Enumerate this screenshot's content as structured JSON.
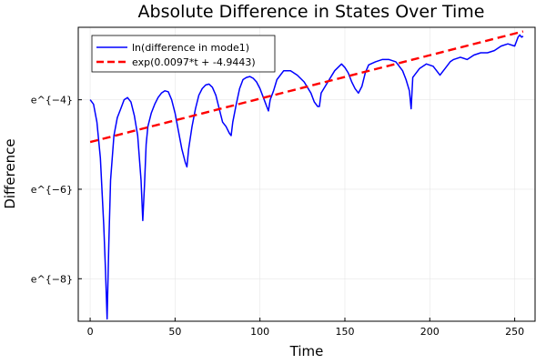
{
  "chart_data": {
    "type": "line",
    "title": "Absolute Difference in States Over Time",
    "xlabel": "Time",
    "ylabel": "Difference",
    "xlim": [
      -7,
      262
    ],
    "ylim": [
      -8.95,
      -2.38
    ],
    "x_ticks": [
      0,
      50,
      100,
      150,
      200,
      250
    ],
    "x_tick_labels": [
      "0",
      "50",
      "100",
      "150",
      "200",
      "250"
    ],
    "y_ticks": [
      -8,
      -6,
      -4
    ],
    "y_tick_labels": [
      "e^{−8}",
      "e^{−6}",
      "e^{−4}"
    ],
    "grid": true,
    "legend_position": "top-left",
    "series": [
      {
        "name": "ln(difference in mode1)",
        "color": "#0000ff",
        "style": "solid",
        "x": [
          0,
          2,
          4,
          6,
          8,
          9,
          10,
          11,
          12,
          14,
          16,
          18,
          20,
          22,
          24,
          26,
          28,
          30,
          31,
          32,
          33,
          34,
          36,
          38,
          40,
          42,
          44,
          46,
          48,
          50,
          52,
          54,
          56,
          57,
          58,
          60,
          62,
          64,
          66,
          68,
          70,
          72,
          74,
          76,
          78,
          80,
          82,
          83,
          84,
          86,
          88,
          90,
          92,
          94,
          96,
          98,
          100,
          102,
          104,
          105,
          106,
          108,
          110,
          114,
          118,
          122,
          126,
          130,
          132,
          134,
          135,
          136,
          140,
          144,
          148,
          150,
          152,
          154,
          156,
          158,
          160,
          162,
          164,
          168,
          172,
          176,
          180,
          184,
          186,
          188,
          189,
          190,
          194,
          198,
          202,
          206,
          210,
          212,
          214,
          218,
          222,
          226,
          230,
          234,
          238,
          242,
          246,
          250,
          252,
          253,
          254,
          255
        ],
        "y": [
          -4.0,
          -4.1,
          -4.5,
          -5.3,
          -6.8,
          -7.8,
          -8.9,
          -7.2,
          -5.8,
          -4.8,
          -4.4,
          -4.2,
          -4.0,
          -3.95,
          -4.05,
          -4.35,
          -4.8,
          -5.8,
          -6.7,
          -5.9,
          -5.0,
          -4.6,
          -4.3,
          -4.1,
          -3.95,
          -3.85,
          -3.8,
          -3.82,
          -4.0,
          -4.3,
          -4.7,
          -5.1,
          -5.4,
          -5.5,
          -5.1,
          -4.6,
          -4.2,
          -3.9,
          -3.75,
          -3.67,
          -3.65,
          -3.72,
          -3.9,
          -4.2,
          -4.5,
          -4.6,
          -4.75,
          -4.8,
          -4.5,
          -4.1,
          -3.75,
          -3.55,
          -3.5,
          -3.48,
          -3.52,
          -3.6,
          -3.75,
          -3.95,
          -4.15,
          -4.25,
          -4.0,
          -3.8,
          -3.55,
          -3.35,
          -3.35,
          -3.45,
          -3.6,
          -3.85,
          -4.05,
          -4.15,
          -4.15,
          -3.85,
          -3.6,
          -3.35,
          -3.2,
          -3.28,
          -3.4,
          -3.6,
          -3.75,
          -3.85,
          -3.7,
          -3.4,
          -3.22,
          -3.15,
          -3.1,
          -3.1,
          -3.15,
          -3.35,
          -3.55,
          -3.8,
          -4.2,
          -3.5,
          -3.3,
          -3.2,
          -3.25,
          -3.45,
          -3.25,
          -3.15,
          -3.1,
          -3.05,
          -3.1,
          -3.0,
          -2.95,
          -2.95,
          -2.9,
          -2.8,
          -2.75,
          -2.8,
          -2.6,
          -2.55,
          -2.6,
          -2.58
        ]
      },
      {
        "name": "exp(0.0097*t + -4.9443)",
        "color": "#ff0000",
        "style": "dashed",
        "x": [
          0,
          255
        ],
        "y": [
          -4.9443,
          -2.4708
        ]
      }
    ]
  }
}
